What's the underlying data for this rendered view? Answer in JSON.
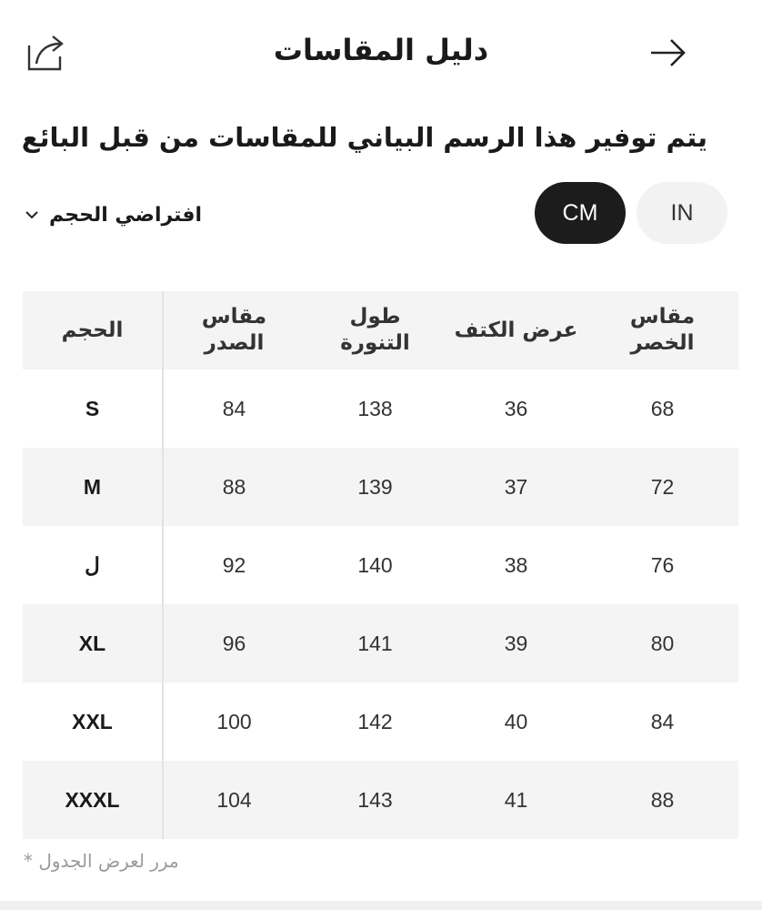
{
  "header": {
    "title": "دليل المقاسات",
    "share_icon": "share-icon",
    "back_icon": "arrow-right-icon"
  },
  "subtitle": "يتم توفير هذا الرسم البياني للمقاسات من قبل البائع",
  "size_select": {
    "label": "افتراضي الحجم",
    "icon": "chevron-down-icon"
  },
  "units": {
    "options": [
      "CM",
      "IN"
    ],
    "selected": "CM"
  },
  "table": {
    "columns": [
      "الحجم",
      "مقاس\nالصدر",
      "طول\nالتنورة",
      "عرض الكتف",
      "مقاس\nالخصر"
    ],
    "rows": [
      [
        "S",
        "84",
        "138",
        "36",
        "68"
      ],
      [
        "M",
        "88",
        "139",
        "37",
        "72"
      ],
      [
        "ل",
        "92",
        "140",
        "38",
        "76"
      ],
      [
        "XL",
        "96",
        "141",
        "39",
        "80"
      ],
      [
        "XXL",
        "100",
        "142",
        "40",
        "84"
      ],
      [
        "XXXL",
        "104",
        "143",
        "41",
        "88"
      ]
    ]
  },
  "footnote": "مرر لعرض الجدول *",
  "colors": {
    "selected_unit_bg": "#1c1c1c",
    "unselected_unit_bg": "#f2f2f2",
    "row_alt_bg": "#f4f4f4"
  }
}
